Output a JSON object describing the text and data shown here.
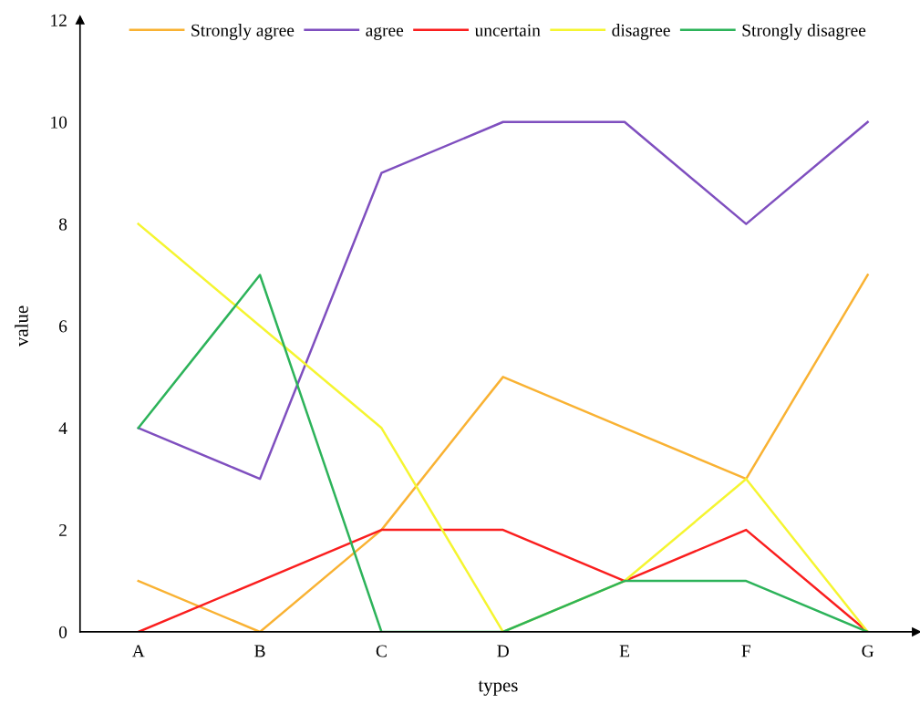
{
  "chart_data": {
    "type": "line",
    "xlabel": "types",
    "ylabel": "value",
    "categories": [
      "A",
      "B",
      "C",
      "D",
      "E",
      "F",
      "G"
    ],
    "series": [
      {
        "name": "Strongly agree",
        "color": "#f9b233",
        "values": [
          1,
          0,
          2,
          5,
          4,
          3,
          7
        ]
      },
      {
        "name": "agree",
        "color": "#7f4fbf",
        "values": [
          4,
          3,
          9,
          10,
          10,
          8,
          10
        ]
      },
      {
        "name": "uncertain",
        "color": "#fa1e1e",
        "values": [
          0,
          1,
          2,
          2,
          1,
          2,
          0
        ]
      },
      {
        "name": "disagree",
        "color": "#f5f531",
        "values": [
          8,
          6,
          4,
          0,
          1,
          3,
          0
        ]
      },
      {
        "name": "Strongly disagree",
        "color": "#2db35a",
        "values": [
          4,
          7,
          0,
          0,
          1,
          1,
          0
        ]
      }
    ],
    "ylim": [
      0,
      12
    ],
    "yticks": [
      0,
      2,
      4,
      6,
      8,
      10,
      12
    ],
    "grid": false,
    "legend": "top",
    "marker": "none",
    "line_style": "solid"
  }
}
